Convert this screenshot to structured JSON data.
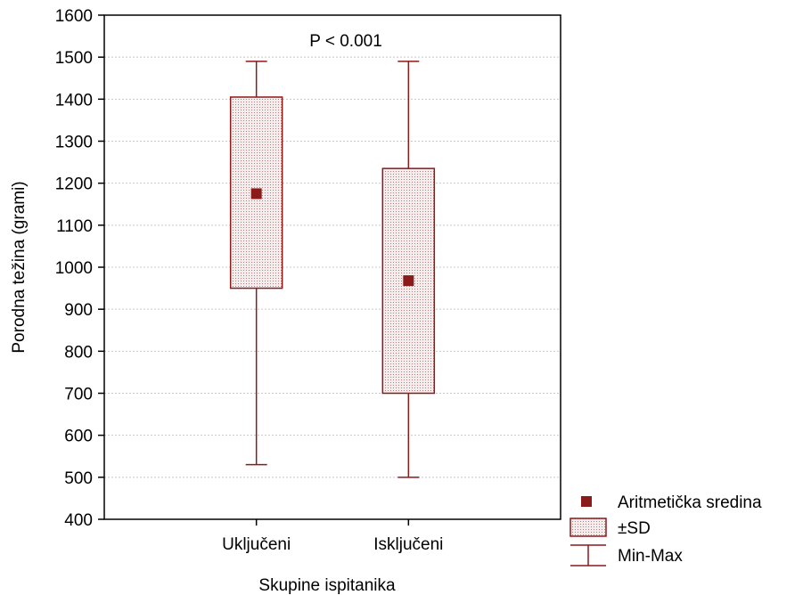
{
  "chart_data": {
    "type": "boxplot",
    "annotation": "P < 0.001",
    "xlabel": "Skupine ispitanika",
    "ylabel": "Porodna težina (grami)",
    "ylim": [
      400,
      1600
    ],
    "yticks": [
      400,
      500,
      600,
      700,
      800,
      900,
      1000,
      1100,
      1200,
      1300,
      1400,
      1500,
      1600
    ],
    "grid": true,
    "categories": [
      "Uključeni",
      "Isključeni"
    ],
    "groups": [
      {
        "category": "Uključeni",
        "mean": 1175,
        "sd_low": 950,
        "sd_high": 1405,
        "min": 530,
        "max": 1490
      },
      {
        "category": "Isključeni",
        "mean": 968,
        "sd_low": 700,
        "sd_high": 1235,
        "min": 500,
        "max": 1490
      }
    ],
    "legend": {
      "position": "bottom-right",
      "entries": [
        "Aritmetička sredina",
        "±SD",
        "Min-Max"
      ]
    },
    "colors": {
      "series": "#8b1a1a",
      "box_fill": "#f0e8e8",
      "grid": "#c8c8c8"
    }
  }
}
